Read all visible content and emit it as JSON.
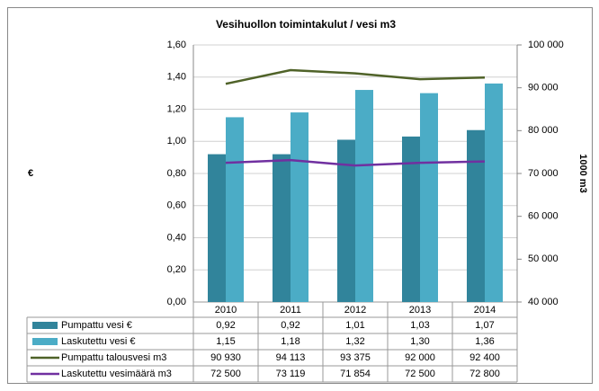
{
  "chart_data": {
    "type": "bar_line_table",
    "title": "Vesihuollon toimintakulut / vesi m3",
    "ylabel": "€",
    "y2label": "1000 m3",
    "categories": [
      "2010",
      "2011",
      "2012",
      "2013",
      "2014"
    ],
    "series": [
      {
        "name": "Pumpattu vesi €",
        "type": "bar",
        "color": "#31849b",
        "values": [
          0.92,
          0.92,
          1.01,
          1.03,
          1.07
        ],
        "value_labels": [
          "0,92",
          "0,92",
          "1,01",
          "1,03",
          "1,07"
        ]
      },
      {
        "name": "Laskutettu vesi €",
        "type": "bar",
        "color": "#4bacc6",
        "values": [
          1.15,
          1.18,
          1.32,
          1.3,
          1.36
        ],
        "value_labels": [
          "1,15",
          "1,18",
          "1,32",
          "1,30",
          "1,36"
        ]
      },
      {
        "name": "Pumpattu talousvesi m3",
        "type": "line",
        "axis": "y2",
        "color": "#4f6228",
        "values": [
          90930,
          94113,
          93375,
          92000,
          92400
        ],
        "value_labels": [
          "90 930",
          "94 113",
          "93 375",
          "92 000",
          "92 400"
        ]
      },
      {
        "name": "Laskutettu vesimäärä m3",
        "type": "line",
        "axis": "y2",
        "color": "#7030a0",
        "values": [
          72500,
          73119,
          71854,
          72500,
          72800
        ],
        "value_labels": [
          "72 500",
          "73 119",
          "71 854",
          "72 500",
          "72 800"
        ]
      }
    ],
    "ylim": [
      0,
      1.6
    ],
    "yticks": [
      {
        "value": 0,
        "label": "0,00"
      },
      {
        "value": 0.2,
        "label": "0,20"
      },
      {
        "value": 0.4,
        "label": "0,40"
      },
      {
        "value": 0.6,
        "label": "0,60"
      },
      {
        "value": 0.8,
        "label": "0,80"
      },
      {
        "value": 1.0,
        "label": "1,00"
      },
      {
        "value": 1.2,
        "label": "1,20"
      },
      {
        "value": 1.4,
        "label": "1,40"
      },
      {
        "value": 1.6,
        "label": "1,60"
      }
    ],
    "y2lim": [
      40000,
      100000
    ],
    "y2ticks": [
      {
        "value": 40000,
        "label": "40 000"
      },
      {
        "value": 50000,
        "label": "50 000"
      },
      {
        "value": 60000,
        "label": "60 000"
      },
      {
        "value": 70000,
        "label": "70 000"
      },
      {
        "value": 80000,
        "label": "80 000"
      },
      {
        "value": 90000,
        "label": "90 000"
      },
      {
        "value": 100000,
        "label": "100 000"
      }
    ],
    "grid": true
  }
}
